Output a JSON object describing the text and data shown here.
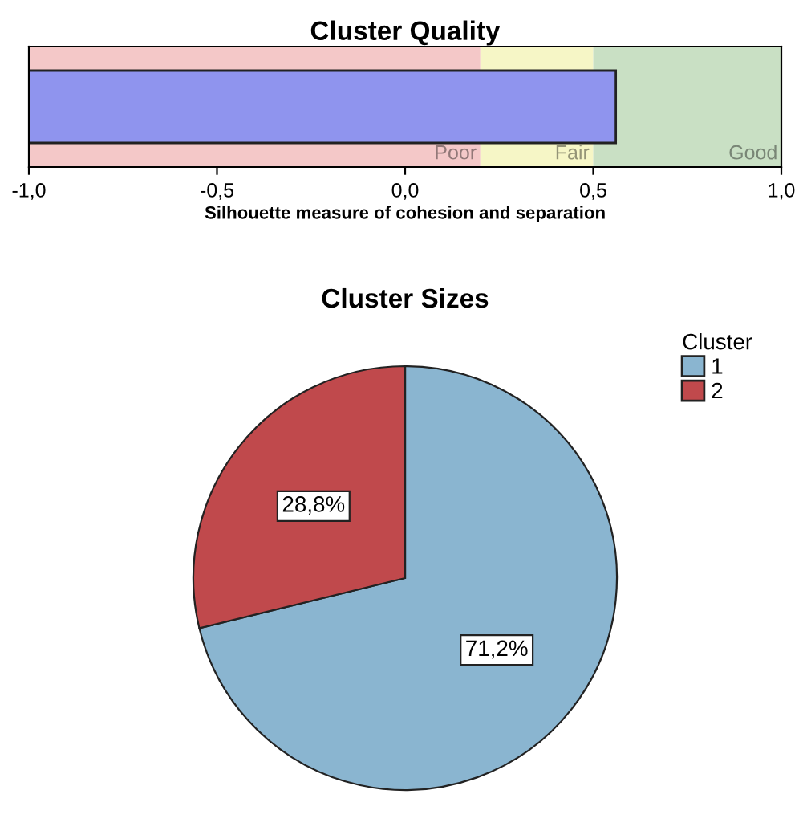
{
  "chart_data": [
    {
      "type": "bar",
      "title": "Cluster Quality",
      "xlabel": "Silhouette measure of cohesion and separation",
      "orientation": "horizontal",
      "categories": [
        null
      ],
      "base": [
        -1
      ],
      "values": [
        1.56
      ],
      "color": "#8f94ee",
      "xlim": [
        -1,
        1
      ],
      "xticks": [
        {
          "value": -1,
          "label": "-1,0"
        },
        {
          "value": -0.5,
          "label": "-0,5"
        },
        {
          "value": 0,
          "label": "0,0"
        },
        {
          "value": 0.5,
          "label": "0,5"
        },
        {
          "value": 1,
          "label": "1,0"
        }
      ],
      "bands": [
        {
          "axis": "x",
          "from": -1,
          "to": 0.2,
          "label": "Poor",
          "color": "#f4c8c8"
        },
        {
          "axis": "x",
          "from": 0.2,
          "to": 0.5,
          "label": "Fair",
          "color": "#f6f6c6"
        },
        {
          "axis": "x",
          "from": 0.5,
          "to": 1,
          "label": "Good",
          "color": "#c9e0c4"
        }
      ],
      "grid": false,
      "legend": false
    },
    {
      "type": "pie",
      "title": "Cluster Sizes",
      "legend_title": "Cluster",
      "categories": [
        "1",
        "2"
      ],
      "values": [
        71.2,
        28.8
      ],
      "colors": [
        "#8ab5d0",
        "#c0494c"
      ],
      "value_labels": [
        "71,2%",
        "28,8%"
      ],
      "legend": "top right"
    }
  ]
}
